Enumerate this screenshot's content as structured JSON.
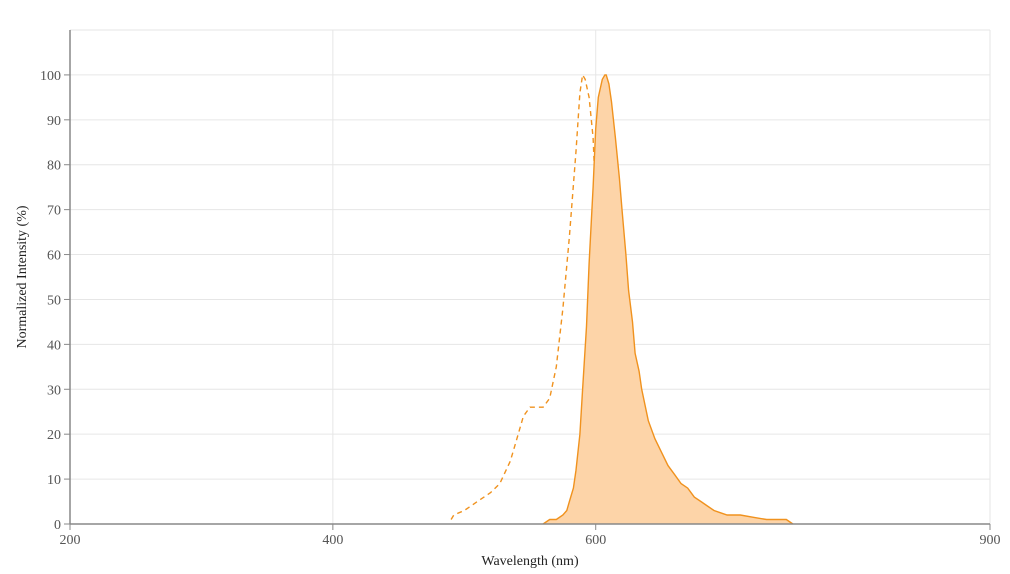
{
  "chart_data": {
    "type": "area",
    "xlabel": "Wavelength (nm)",
    "ylabel": "Normalized Intensity (%)",
    "xlim": [
      200,
      900
    ],
    "ylim": [
      0,
      110
    ],
    "xticks": [
      200,
      400,
      600,
      900
    ],
    "yticks": [
      0,
      10,
      20,
      30,
      40,
      50,
      60,
      70,
      80,
      90,
      100
    ],
    "grid": true,
    "colors": {
      "line": "#f0921e",
      "fill": "#fdd4a8"
    },
    "series": [
      {
        "style": "dashed",
        "x": [
          490,
          492,
          500,
          510,
          520,
          527,
          535,
          540,
          545,
          550,
          552,
          555,
          560,
          565,
          570,
          575,
          580,
          585,
          588,
          590,
          592,
          595,
          598,
          600,
          602,
          605,
          608,
          610,
          613,
          615,
          618,
          620,
          625,
          630,
          635
        ],
        "y": [
          1,
          2,
          3,
          5,
          7,
          9,
          14,
          19,
          24,
          26,
          26,
          26,
          26,
          28,
          35,
          48,
          64,
          83,
          96,
          100,
          99,
          95,
          86,
          72,
          60,
          48,
          37,
          28,
          20,
          14,
          9,
          6,
          3,
          1,
          0
        ]
      },
      {
        "style": "solid",
        "fill": true,
        "x": [
          560,
          565,
          570,
          575,
          578,
          580,
          583,
          585,
          588,
          590,
          593,
          595,
          598,
          600,
          602,
          605,
          607,
          608,
          610,
          612,
          615,
          618,
          620,
          623,
          625,
          628,
          630,
          633,
          635,
          640,
          645,
          650,
          655,
          660,
          665,
          670,
          675,
          680,
          685,
          690,
          695,
          700,
          705,
          710,
          720,
          730,
          740,
          745,
          750
        ],
        "y": [
          0,
          1,
          1,
          2,
          3,
          5,
          8,
          12,
          20,
          30,
          44,
          58,
          75,
          88,
          95,
          99,
          100,
          100,
          98,
          94,
          86,
          77,
          70,
          60,
          52,
          45,
          38,
          34,
          30,
          23,
          19,
          16,
          13,
          11,
          9,
          8,
          6,
          5,
          4,
          3,
          2.5,
          2,
          2,
          2,
          1.5,
          1,
          1,
          1,
          0
        ]
      }
    ]
  }
}
